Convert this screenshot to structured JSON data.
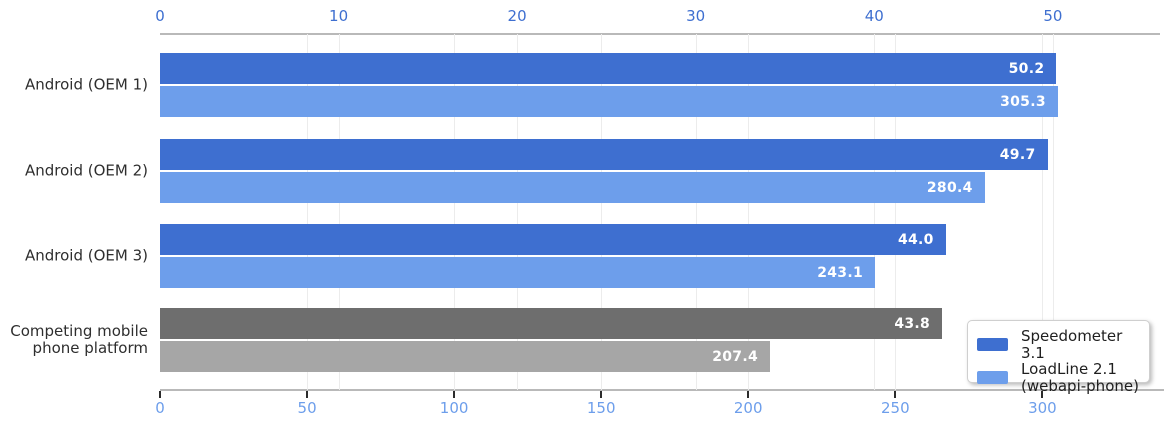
{
  "chart_data": {
    "type": "bar",
    "orientation": "horizontal",
    "title": "",
    "categories": [
      "Android (OEM 1)",
      "Android (OEM 2)",
      "Android (OEM 3)",
      "Competing mobile\nphone platform"
    ],
    "series": [
      {
        "name": "Speedometer 3.1",
        "axis": "top",
        "values": [
          50.2,
          49.7,
          44.0,
          43.8
        ],
        "bar_colors": [
          "#3e6fd0",
          "#3e6fd0",
          "#3e6fd0",
          "#6e6e6e"
        ]
      },
      {
        "name": "LoadLine 2.1 (webapi-phone)",
        "axis": "bottom",
        "values": [
          305.3,
          280.4,
          243.1,
          207.4
        ],
        "bar_colors": [
          "#6d9eeb",
          "#6d9eeb",
          "#6d9eeb",
          "#a6a6a6"
        ]
      }
    ],
    "axes": {
      "top": {
        "ticks": [
          0,
          10,
          20,
          30,
          40,
          50
        ],
        "range": [
          0,
          56
        ],
        "label_color": "#3e6fd0"
      },
      "bottom": {
        "ticks": [
          0,
          50,
          100,
          150,
          200,
          250,
          300
        ],
        "range": [
          0,
          340
        ],
        "label_color": "#6d9eeb"
      }
    },
    "legend": {
      "position": "lower right",
      "entries": [
        {
          "label": "Speedometer 3.1",
          "color": "#3e6fd0"
        },
        {
          "label": "LoadLine 2.1\n(webapi-phone)",
          "color": "#6d9eeb"
        }
      ]
    },
    "grid": true,
    "value_label_decimals": 1
  }
}
